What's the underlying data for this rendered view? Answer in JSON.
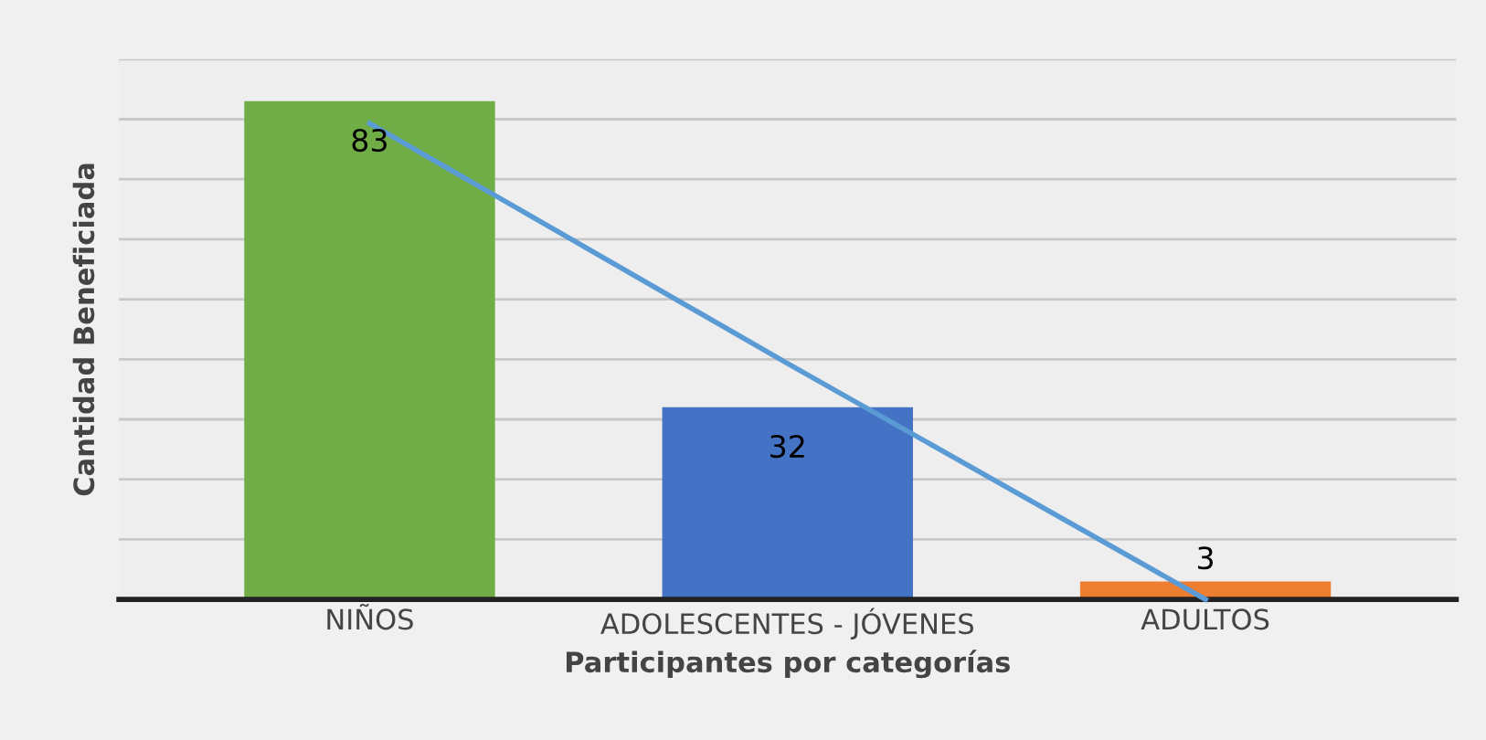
{
  "chart_data": {
    "type": "bar",
    "xlabel": "Participantes por categorías",
    "ylabel": "Cantidad Beneficiada",
    "categories": [
      "NIÑOS",
      "ADOLESCENTES - JÓVENES",
      "ADULTOS"
    ],
    "series": [
      {
        "colors": [
          "#70ad47",
          "#4472c4",
          "#ed7d31"
        ],
        "values": [
          83,
          32,
          3
        ],
        "value_labels": [
          "83",
          "32",
          "3"
        ]
      },
      {
        "type": "line",
        "color": "#5b9bd5",
        "values": [
          79.3,
          39.3,
          0
        ]
      }
    ],
    "ylim": [
      0,
      90
    ],
    "yticks": [
      {
        "value": 0,
        "label": null
      },
      {
        "value": 10,
        "label": null
      },
      {
        "value": 20,
        "label": null
      },
      {
        "value": 30,
        "label": null
      },
      {
        "value": 40,
        "label": null
      },
      {
        "value": 50,
        "label": null
      },
      {
        "value": 60,
        "label": null
      },
      {
        "value": 70,
        "label": null
      },
      {
        "value": 80,
        "label": null
      },
      {
        "value": 90,
        "label": null
      }
    ],
    "grid": "y",
    "legend": false
  }
}
